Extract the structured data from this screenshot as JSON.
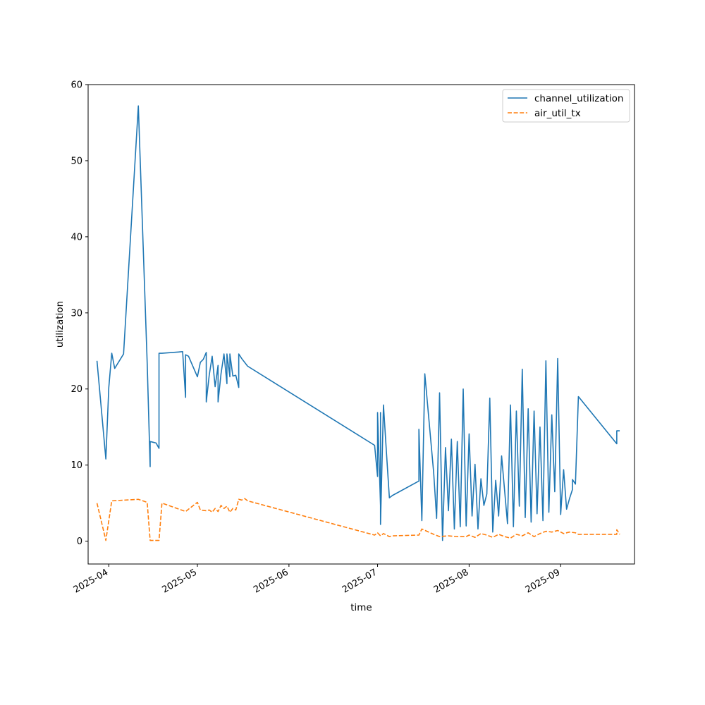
{
  "chart_data": {
    "type": "line",
    "title": "",
    "xlabel": "time",
    "ylabel": "utilization",
    "xlim": [
      "2025-03-25",
      "2025-09-26"
    ],
    "ylim": [
      -3,
      60
    ],
    "yticks": [
      0,
      10,
      20,
      30,
      40,
      50,
      60
    ],
    "xticks": [
      "2025-04-01",
      "2025-05-01",
      "2025-06-01",
      "2025-07-01",
      "2025-08-01",
      "2025-09-01"
    ],
    "xtick_labels": [
      "2025-04",
      "2025-05",
      "2025-06",
      "2025-07",
      "2025-08",
      "2025-09"
    ],
    "grid": false,
    "legend_position": "top-right",
    "series": [
      {
        "name": "channel_utilization",
        "color": "#1f77b4",
        "style": "solid",
        "x": [
          "2025-03-28",
          "2025-03-31",
          "2025-04-01",
          "2025-04-02",
          "2025-04-03",
          "2025-04-06",
          "2025-04-11",
          "2025-04-14",
          "2025-04-15",
          "2025-04-15",
          "2025-04-16",
          "2025-04-17",
          "2025-04-18",
          "2025-04-18",
          "2025-04-19",
          "2025-04-26",
          "2025-04-27",
          "2025-04-27",
          "2025-04-28",
          "2025-05-01",
          "2025-05-02",
          "2025-05-03",
          "2025-05-04",
          "2025-05-04",
          "2025-05-05",
          "2025-05-06",
          "2025-05-07",
          "2025-05-08",
          "2025-05-08",
          "2025-05-09",
          "2025-05-10",
          "2025-05-11",
          "2025-05-11",
          "2025-05-12",
          "2025-05-12",
          "2025-05-13",
          "2025-05-14",
          "2025-05-15",
          "2025-05-15",
          "2025-05-16",
          "2025-05-18",
          "2025-06-30",
          "2025-07-01",
          "2025-07-01",
          "2025-07-02",
          "2025-07-02",
          "2025-07-02",
          "2025-07-03",
          "2025-07-04",
          "2025-07-05",
          "2025-07-05",
          "2025-07-06",
          "2025-07-06",
          "2025-07-15",
          "2025-07-15",
          "2025-07-16",
          "2025-07-17",
          "2025-07-20",
          "2025-07-21",
          "2025-07-22",
          "2025-07-23",
          "2025-07-24",
          "2025-07-25",
          "2025-07-26",
          "2025-07-27",
          "2025-07-28",
          "2025-07-29",
          "2025-07-30",
          "2025-07-31",
          "2025-08-01",
          "2025-08-02",
          "2025-08-03",
          "2025-08-04",
          "2025-08-05",
          "2025-08-06",
          "2025-08-07",
          "2025-08-08",
          "2025-08-09",
          "2025-08-10",
          "2025-08-11",
          "2025-08-12",
          "2025-08-14",
          "2025-08-15",
          "2025-08-16",
          "2025-08-17",
          "2025-08-18",
          "2025-08-19",
          "2025-08-20",
          "2025-08-21",
          "2025-08-22",
          "2025-08-23",
          "2025-08-24",
          "2025-08-25",
          "2025-08-26",
          "2025-08-27",
          "2025-08-28",
          "2025-08-29",
          "2025-08-30",
          "2025-08-31",
          "2025-09-01",
          "2025-09-02",
          "2025-09-03",
          "2025-09-04",
          "2025-09-05",
          "2025-09-05",
          "2025-09-06",
          "2025-09-07",
          "2025-09-20",
          "2025-09-20",
          "2025-09-20",
          "2025-09-21"
        ],
        "y": [
          23.7,
          10.8,
          20.2,
          24.7,
          22.7,
          24.6,
          57.2,
          23.4,
          9.8,
          13.1,
          13.0,
          12.9,
          12.2,
          24.7,
          24.7,
          24.9,
          18.9,
          24.5,
          24.3,
          21.6,
          23.5,
          23.9,
          24.8,
          18.3,
          21.8,
          24.3,
          20.3,
          23.1,
          18.3,
          22.0,
          24.6,
          20.7,
          24.6,
          21.6,
          24.6,
          21.7,
          21.8,
          20.2,
          24.6,
          24.0,
          23.0,
          12.6,
          8.5,
          16.9,
          4.7,
          16.9,
          2.2,
          17.9,
          11.7,
          5.7,
          5.7,
          6.0,
          6.0,
          7.9,
          14.7,
          2.7,
          22.0,
          9.0,
          3.0,
          19.5,
          0.1,
          12.3,
          4.0,
          13.4,
          1.6,
          13.1,
          1.9,
          20.0,
          2.0,
          14.1,
          3.3,
          10.1,
          1.6,
          8.2,
          4.7,
          6.2,
          18.8,
          1.2,
          8.0,
          3.3,
          11.2,
          2.3,
          17.9,
          1.9,
          17.1,
          4.6,
          22.6,
          3.1,
          17.4,
          2.5,
          17.1,
          3.6,
          15.0,
          2.7,
          23.7,
          3.8,
          16.6,
          6.5,
          24.0,
          3.5,
          9.4,
          4.2,
          5.6,
          6.8,
          8.1,
          7.5,
          19.0,
          12.8,
          14.5,
          14.5,
          14.5
        ],
        "style_line": "solid"
      },
      {
        "name": "air_util_tx",
        "color": "#ff7f0e",
        "style": "dashed",
        "x": [
          "2025-03-28",
          "2025-03-31",
          "2025-04-02",
          "2025-04-11",
          "2025-04-14",
          "2025-04-15",
          "2025-04-18",
          "2025-04-19",
          "2025-04-27",
          "2025-05-01",
          "2025-05-02",
          "2025-05-04",
          "2025-05-05",
          "2025-05-06",
          "2025-05-07",
          "2025-05-08",
          "2025-05-09",
          "2025-05-10",
          "2025-05-11",
          "2025-05-12",
          "2025-05-13",
          "2025-05-14",
          "2025-05-15",
          "2025-05-16",
          "2025-05-17",
          "2025-05-18",
          "2025-06-30",
          "2025-07-01",
          "2025-07-02",
          "2025-07-03",
          "2025-07-05",
          "2025-07-06",
          "2025-07-15",
          "2025-07-16",
          "2025-07-20",
          "2025-07-22",
          "2025-07-25",
          "2025-07-28",
          "2025-07-31",
          "2025-08-01",
          "2025-08-03",
          "2025-08-05",
          "2025-08-07",
          "2025-08-09",
          "2025-08-11",
          "2025-08-13",
          "2025-08-15",
          "2025-08-17",
          "2025-08-19",
          "2025-08-21",
          "2025-08-23",
          "2025-08-25",
          "2025-08-27",
          "2025-08-29",
          "2025-08-31",
          "2025-09-02",
          "2025-09-04",
          "2025-09-06",
          "2025-09-07",
          "2025-09-20",
          "2025-09-20",
          "2025-09-21"
        ],
        "y": [
          5.0,
          0.1,
          5.3,
          5.5,
          5.1,
          0.1,
          0.1,
          5.0,
          3.9,
          5.1,
          4.1,
          4.0,
          4.1,
          3.8,
          4.3,
          3.9,
          4.7,
          4.3,
          4.6,
          3.8,
          4.3,
          4.1,
          5.5,
          5.4,
          5.6,
          5.3,
          0.8,
          1.1,
          0.7,
          1.0,
          0.6,
          0.7,
          0.8,
          1.6,
          0.9,
          0.6,
          0.7,
          0.6,
          0.6,
          0.8,
          0.5,
          1.0,
          0.8,
          0.5,
          0.9,
          0.6,
          0.4,
          0.9,
          0.7,
          1.1,
          0.6,
          1.0,
          1.3,
          1.2,
          1.4,
          1.0,
          1.2,
          1.1,
          0.9,
          0.9,
          1.5,
          0.9
        ]
      }
    ]
  }
}
